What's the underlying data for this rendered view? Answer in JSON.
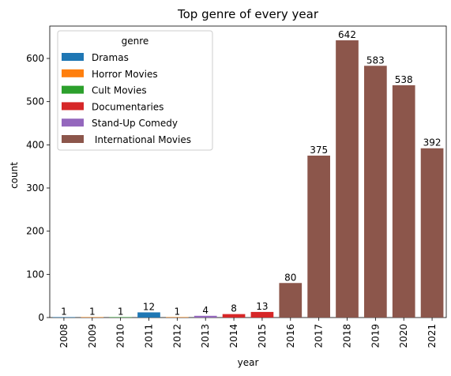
{
  "chart_data": {
    "type": "bar",
    "title": "Top genre of every year",
    "xlabel": "year",
    "ylabel": "count",
    "ylim": [
      0,
      675
    ],
    "yticks": [
      0,
      100,
      200,
      300,
      400,
      500,
      600
    ],
    "legend": {
      "title": "genre",
      "placement": "top-left",
      "entries": [
        {
          "name": "Dramas",
          "color": "#1f77b4"
        },
        {
          "name": "Horror Movies",
          "color": "#ff7f0e"
        },
        {
          "name": "Cult Movies",
          "color": "#2ca02c"
        },
        {
          "name": "Documentaries",
          "color": "#d62728"
        },
        {
          "name": "Stand-Up Comedy",
          "color": "#9467bd"
        },
        {
          "name": " International Movies",
          "color": "#8c564b"
        }
      ]
    },
    "categories": [
      "2008",
      "2009",
      "2010",
      "2011",
      "2012",
      "2013",
      "2014",
      "2015",
      "2016",
      "2017",
      "2018",
      "2019",
      "2020",
      "2021"
    ],
    "values": [
      1,
      1,
      1,
      12,
      1,
      4,
      8,
      13,
      80,
      375,
      642,
      583,
      538,
      392
    ],
    "bar_genres": [
      "Dramas",
      "Horror Movies",
      "Cult Movies",
      "Dramas",
      "Horror Movies",
      "Stand-Up Comedy",
      "Documentaries",
      "Documentaries",
      " International Movies",
      " International Movies",
      " International Movies",
      " International Movies",
      " International Movies",
      " International Movies"
    ]
  }
}
